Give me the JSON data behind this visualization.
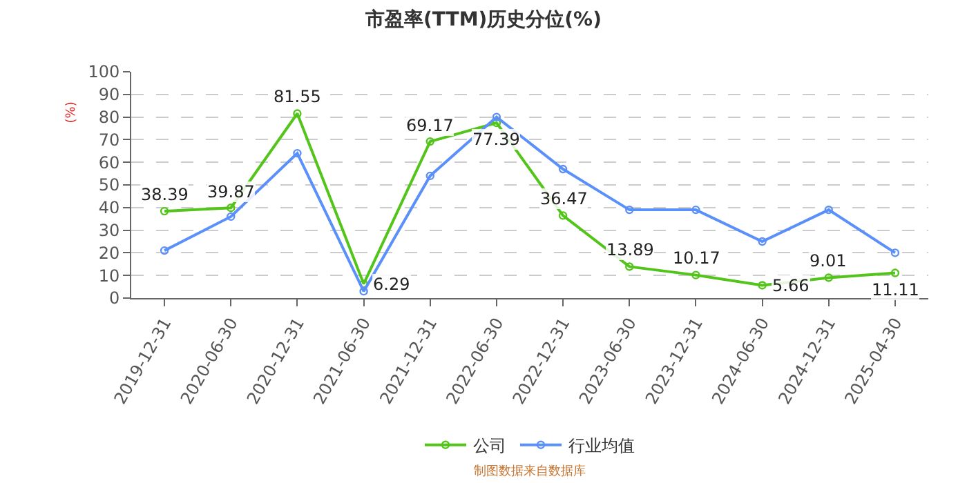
{
  "chart_data": {
    "type": "line",
    "title": "市盈率(TTM)历史分位(%)",
    "ylabel": "(%)",
    "categories": [
      "2019-12-31",
      "2020-06-30",
      "2020-12-31",
      "2021-06-30",
      "2021-12-31",
      "2022-06-30",
      "2022-12-31",
      "2023-06-30",
      "2023-12-31",
      "2024-06-30",
      "2024-12-31",
      "2025-04-30"
    ],
    "series": [
      {
        "name": "公司",
        "color": "#52c41a",
        "values": [
          38.39,
          39.87,
          81.55,
          6.29,
          69.17,
          77.39,
          36.47,
          13.89,
          10.17,
          5.66,
          9.01,
          11.11
        ],
        "value_labels": [
          "38.39",
          "39.87",
          "81.55",
          "6.29",
          "69.17",
          "77.39",
          "36.47",
          "13.89",
          "10.17",
          "5.66",
          "9.01",
          "11.11"
        ]
      },
      {
        "name": "行业均值",
        "color": "#5b8ff9",
        "values": [
          21,
          36,
          64,
          3,
          54,
          80,
          57,
          39,
          39,
          25,
          39,
          20
        ]
      }
    ],
    "ylim": [
      0,
      100
    ],
    "yticks": [
      0,
      10,
      20,
      30,
      40,
      50,
      60,
      70,
      80,
      90,
      100
    ],
    "grid": "y",
    "legend": "bottom",
    "marker": "circle",
    "line_style": "solid",
    "annotations": [
      "制图数据来自数据库"
    ]
  }
}
